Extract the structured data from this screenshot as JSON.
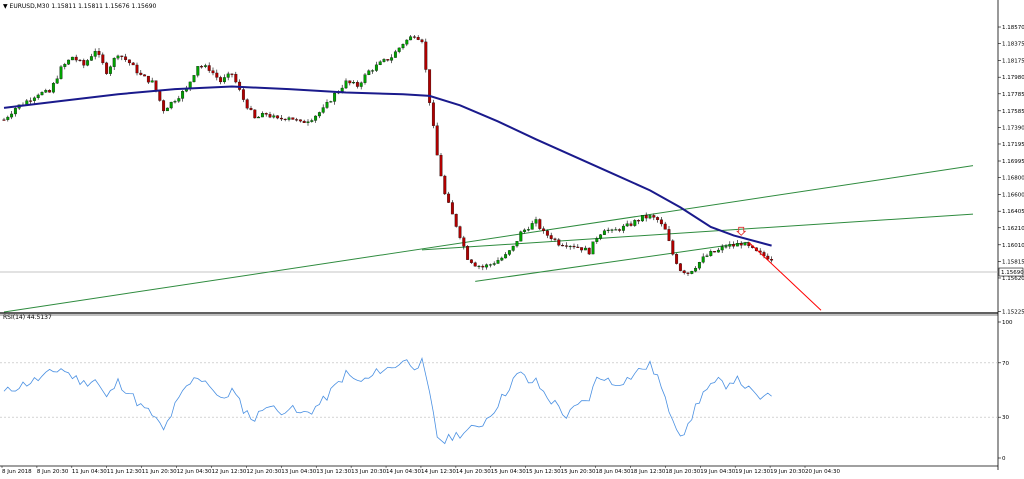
{
  "header": {
    "menu_glyph": "▼",
    "symbol": "EURUSD,M30",
    "ohlc": "1.15811 1.15811 1.15676 1.15690"
  },
  "rsi_header": "RSI(14) 44.5137",
  "colors": {
    "bull": "#00a000",
    "bear": "#b00000",
    "ma": "#1a1a8c",
    "channel": "#2e8b3e",
    "rsi": "#4a90e2",
    "projection": "#ff0000",
    "marker": "#e03030",
    "price_line": "#b0b0b0"
  },
  "chart_data": [
    {
      "type": "candlestick",
      "price_axis_ticks": [
        "1.18570",
        "1.18375",
        "1.18175",
        "1.17980",
        "1.17785",
        "1.17585",
        "1.17390",
        "1.17195",
        "1.16995",
        "1.16800",
        "1.16600",
        "1.16405",
        "1.16210",
        "1.16010",
        "1.15815",
        "1.15620",
        "1.15225"
      ],
      "price_range": [
        1.1522,
        1.1877
      ],
      "current_price": "1.15690",
      "time_labels": [
        "8 Jun 2018",
        "8 Jun 20:30",
        "11 Jun 04:30",
        "11 Jun 12:30",
        "11 Jun 20:30",
        "12 Jun 04:30",
        "12 Jun 12:30",
        "12 Jun 20:30",
        "13 Jun 04:30",
        "13 Jun 12:30",
        "13 Jun 20:30",
        "14 Jun 04:30",
        "14 Jun 12:30",
        "14 Jun 20:30",
        "15 Jun 04:30",
        "15 Jun 12:30",
        "15 Jun 20:30",
        "18 Jun 04:30",
        "18 Jun 12:30",
        "18 Jun 20:30",
        "19 Jun 04:30",
        "19 Jun 12:30",
        "19 Jun 20:30",
        "20 Jun 04:30"
      ],
      "price_path": [
        [
          0,
          1.1748
        ],
        [
          3,
          1.1762
        ],
        [
          6,
          1.177
        ],
        [
          9,
          1.1779
        ],
        [
          12,
          1.178
        ],
        [
          15,
          1.1808
        ],
        [
          18,
          1.1822
        ],
        [
          21,
          1.1812
        ],
        [
          24,
          1.183
        ],
        [
          27,
          1.1805
        ],
        [
          30,
          1.1826
        ],
        [
          33,
          1.1815
        ],
        [
          36,
          1.18
        ],
        [
          39,
          1.1792
        ],
        [
          42,
          1.176
        ],
        [
          45,
          1.1772
        ],
        [
          48,
          1.1784
        ],
        [
          51,
          1.1812
        ],
        [
          54,
          1.1808
        ],
        [
          57,
          1.1793
        ],
        [
          60,
          1.1802
        ],
        [
          63,
          1.1772
        ],
        [
          66,
          1.1749
        ],
        [
          69,
          1.1755
        ],
        [
          72,
          1.1748
        ],
        [
          75,
          1.1752
        ],
        [
          78,
          1.1744
        ],
        [
          81,
          1.175
        ],
        [
          84,
          1.176
        ],
        [
          87,
          1.1778
        ],
        [
          90,
          1.1792
        ],
        [
          93,
          1.1788
        ],
        [
          96,
          1.1805
        ],
        [
          99,
          1.1814
        ],
        [
          102,
          1.1822
        ],
        [
          105,
          1.1838
        ],
        [
          108,
          1.1848
        ],
        [
          110,
          1.1842
        ],
        [
          112,
          1.177
        ],
        [
          114,
          1.1706
        ],
        [
          116,
          1.166
        ],
        [
          118,
          1.1636
        ],
        [
          120,
          1.1612
        ],
        [
          122,
          1.1586
        ],
        [
          124,
          1.1578
        ],
        [
          126,
          1.1575
        ],
        [
          128,
          1.1578
        ],
        [
          130,
          1.1583
        ],
        [
          132,
          1.1588
        ],
        [
          134,
          1.1598
        ],
        [
          136,
          1.1615
        ],
        [
          138,
          1.1622
        ],
        [
          140,
          1.1628
        ],
        [
          142,
          1.1615
        ],
        [
          144,
          1.161
        ],
        [
          146,
          1.1603
        ],
        [
          148,
          1.1602
        ],
        [
          150,
          1.16
        ],
        [
          152,
          1.1597
        ],
        [
          154,
          1.1593
        ],
        [
          156,
          1.161
        ],
        [
          158,
          1.162
        ],
        [
          160,
          1.1616
        ],
        [
          162,
          1.162
        ],
        [
          164,
          1.1623
        ],
        [
          166,
          1.1628
        ],
        [
          168,
          1.1633
        ],
        [
          170,
          1.1634
        ],
        [
          172,
          1.163
        ],
        [
          174,
          1.1618
        ],
        [
          176,
          1.159
        ],
        [
          178,
          1.1572
        ],
        [
          180,
          1.1568
        ],
        [
          182,
          1.1576
        ],
        [
          184,
          1.1585
        ],
        [
          186,
          1.1591
        ],
        [
          188,
          1.1594
        ],
        [
          190,
          1.16
        ],
        [
          192,
          1.16
        ],
        [
          194,
          1.1603
        ],
        [
          196,
          1.1598
        ],
        [
          198,
          1.1592
        ],
        [
          200,
          1.1588
        ],
        [
          202,
          1.1585
        ]
      ],
      "moving_average": [
        [
          0,
          1.1762
        ],
        [
          15,
          1.177
        ],
        [
          30,
          1.1778
        ],
        [
          45,
          1.1784
        ],
        [
          60,
          1.1787
        ],
        [
          75,
          1.1784
        ],
        [
          90,
          1.178
        ],
        [
          105,
          1.1778
        ],
        [
          112,
          1.1776
        ],
        [
          120,
          1.1765
        ],
        [
          130,
          1.1746
        ],
        [
          140,
          1.1725
        ],
        [
          150,
          1.1705
        ],
        [
          160,
          1.1685
        ],
        [
          170,
          1.1665
        ],
        [
          178,
          1.1645
        ],
        [
          186,
          1.1622
        ],
        [
          192,
          1.1612
        ],
        [
          202,
          1.16
        ]
      ],
      "channel_lines": [
        {
          "from": [
            0,
            1.1522
          ],
          "to": [
            255,
            1.1694
          ]
        },
        {
          "from": [
            110,
            1.1595
          ],
          "to": [
            255,
            1.1637
          ]
        },
        {
          "from": [
            124,
            1.1558
          ],
          "to": [
            196,
            1.1604
          ]
        }
      ],
      "projection": {
        "from": [
          196,
          1.1604
        ],
        "to": [
          215,
          1.1524
        ]
      },
      "marker": {
        "x": 194,
        "price": 1.1611
      }
    },
    {
      "type": "line",
      "name": "RSI(14)",
      "y_ticks": [
        "100",
        "70",
        "30",
        "0"
      ],
      "ylim": [
        0,
        100
      ],
      "levels": [
        70,
        30
      ],
      "values": [
        [
          0,
          48
        ],
        [
          3,
          52
        ],
        [
          6,
          55
        ],
        [
          9,
          58
        ],
        [
          12,
          62
        ],
        [
          15,
          66
        ],
        [
          18,
          60
        ],
        [
          21,
          55
        ],
        [
          24,
          58
        ],
        [
          27,
          44
        ],
        [
          30,
          56
        ],
        [
          33,
          48
        ],
        [
          36,
          38
        ],
        [
          39,
          32
        ],
        [
          42,
          20
        ],
        [
          45,
          38
        ],
        [
          48,
          52
        ],
        [
          51,
          60
        ],
        [
          54,
          55
        ],
        [
          57,
          42
        ],
        [
          60,
          50
        ],
        [
          63,
          36
        ],
        [
          66,
          28
        ],
        [
          69,
          40
        ],
        [
          72,
          34
        ],
        [
          75,
          37
        ],
        [
          78,
          32
        ],
        [
          81,
          35
        ],
        [
          84,
          42
        ],
        [
          87,
          52
        ],
        [
          90,
          62
        ],
        [
          93,
          56
        ],
        [
          96,
          58
        ],
        [
          99,
          65
        ],
        [
          102,
          66
        ],
        [
          105,
          72
        ],
        [
          108,
          68
        ],
        [
          110,
          70
        ],
        [
          112,
          46
        ],
        [
          114,
          16
        ],
        [
          116,
          12
        ],
        [
          118,
          16
        ],
        [
          120,
          18
        ],
        [
          122,
          20
        ],
        [
          124,
          22
        ],
        [
          126,
          26
        ],
        [
          128,
          32
        ],
        [
          130,
          40
        ],
        [
          132,
          48
        ],
        [
          134,
          58
        ],
        [
          136,
          62
        ],
        [
          138,
          56
        ],
        [
          140,
          56
        ],
        [
          142,
          48
        ],
        [
          144,
          42
        ],
        [
          146,
          38
        ],
        [
          148,
          30
        ],
        [
          150,
          36
        ],
        [
          152,
          40
        ],
        [
          154,
          44
        ],
        [
          156,
          58
        ],
        [
          158,
          60
        ],
        [
          160,
          54
        ],
        [
          162,
          56
        ],
        [
          164,
          58
        ],
        [
          166,
          62
        ],
        [
          168,
          66
        ],
        [
          170,
          68
        ],
        [
          172,
          60
        ],
        [
          174,
          42
        ],
        [
          176,
          30
        ],
        [
          178,
          18
        ],
        [
          180,
          22
        ],
        [
          182,
          38
        ],
        [
          184,
          48
        ],
        [
          186,
          52
        ],
        [
          188,
          56
        ],
        [
          190,
          54
        ],
        [
          192,
          58
        ],
        [
          194,
          56
        ],
        [
          196,
          50
        ],
        [
          198,
          45
        ],
        [
          200,
          44
        ],
        [
          202,
          45
        ]
      ]
    }
  ]
}
